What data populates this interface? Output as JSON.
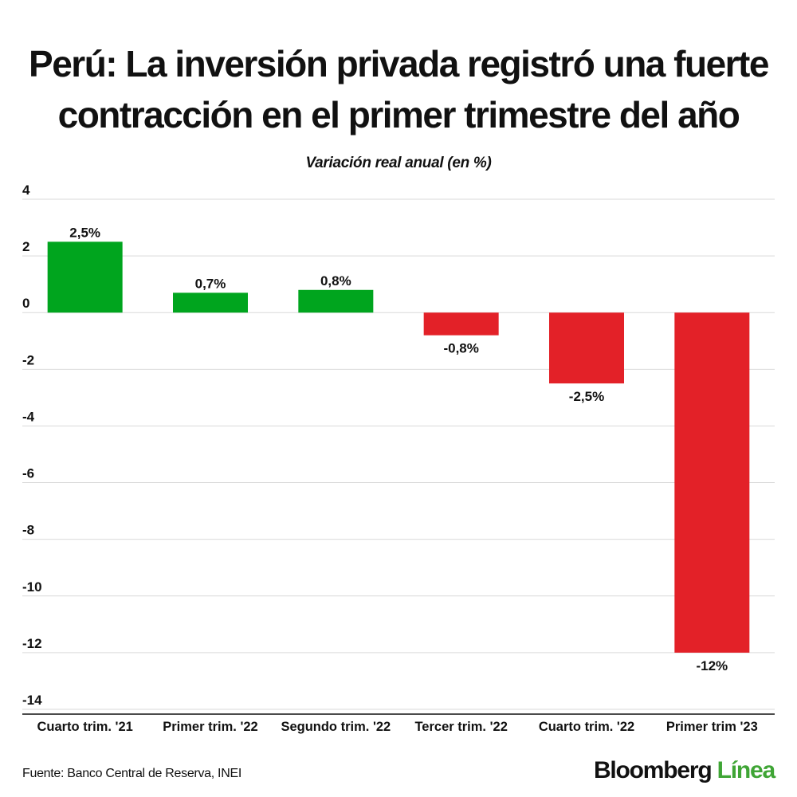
{
  "title": "Perú: La inversión privada registró una fuerte contracción en el primer trimestre del año",
  "source": "Fuente: Banco Central de Reserva, INEI",
  "logo": {
    "part1": "Bloomberg",
    "part2": "Línea"
  },
  "colors": {
    "positive": "#00a51e",
    "negative": "#e32128",
    "logo_accent": "#3fa535"
  },
  "chart_data": {
    "type": "bar",
    "title": "Variación real anual  (en %)",
    "xlabel": "",
    "ylabel": "",
    "categories": [
      "Cuarto trim. '21",
      "Primer trim. '22",
      "Segundo trim. '22",
      "Tercer trim. '22",
      "Cuarto trim. '22",
      "Primer trim '23"
    ],
    "values": [
      2.5,
      0.7,
      0.8,
      -0.8,
      -2.5,
      -12
    ],
    "data_labels": [
      "2,5%",
      "0,7%",
      "0,8%",
      "-0,8%",
      "-2,5%",
      "-12%"
    ],
    "ylim": [
      -14,
      4
    ],
    "yticks": [
      4,
      2,
      0,
      -2,
      -4,
      -6,
      -8,
      -10,
      -12,
      -14
    ],
    "grid": true,
    "legend": "none"
  }
}
